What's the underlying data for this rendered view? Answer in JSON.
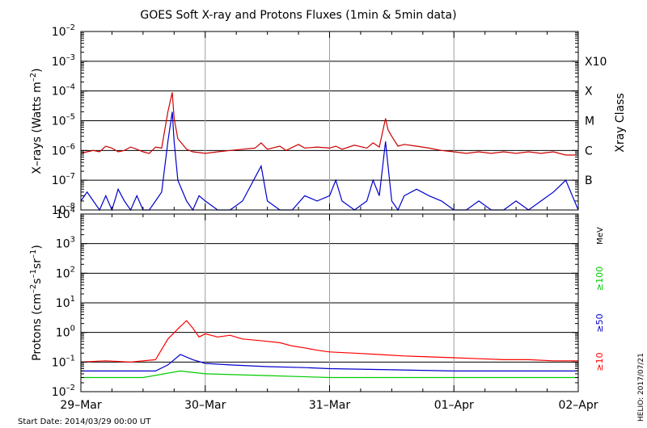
{
  "chart_data": [
    {
      "type": "line",
      "title": "GOES Soft X-ray and Protons Fluxes   (1min & 5min data)",
      "ylabel_base": "X–rays (Watts m",
      "ylabel_exp": "–2",
      "ylabel_end": ")",
      "yscale": "log",
      "ylim": [
        1e-08,
        0.01
      ],
      "yticks": [
        {
          "value": 1e-08,
          "base": "10",
          "exp": "–8"
        },
        {
          "value": 1e-07,
          "base": "10",
          "exp": "–7"
        },
        {
          "value": 1e-06,
          "base": "10",
          "exp": "–6"
        },
        {
          "value": 1e-05,
          "base": "10",
          "exp": "–5"
        },
        {
          "value": 0.0001,
          "base": "10",
          "exp": "–4"
        },
        {
          "value": 0.001,
          "base": "10",
          "exp": "–3"
        },
        {
          "value": 0.01,
          "base": "10",
          "exp": "–2"
        }
      ],
      "right_axis_label": "Xray Class",
      "classes": [
        {
          "label": "B",
          "value": 1e-07
        },
        {
          "label": "C",
          "value": 1e-06
        },
        {
          "label": "M",
          "value": 1e-05
        },
        {
          "label": "X",
          "value": 0.0001
        },
        {
          "label": "X10",
          "value": 0.001
        }
      ],
      "x_day_start": "2014-03-29",
      "x_days": 4,
      "series": [
        {
          "color": "#cc0000",
          "points": [
            [
              0,
              8e-07
            ],
            [
              0.05,
              9e-07
            ],
            [
              0.1,
              1e-06
            ],
            [
              0.15,
              9e-07
            ],
            [
              0.2,
              1.4e-06
            ],
            [
              0.25,
              1.2e-06
            ],
            [
              0.3,
              9e-07
            ],
            [
              0.35,
              1e-06
            ],
            [
              0.4,
              1.3e-06
            ],
            [
              0.45,
              1.1e-06
            ],
            [
              0.5,
              9e-07
            ],
            [
              0.55,
              8e-07
            ],
            [
              0.6,
              1.3e-06
            ],
            [
              0.65,
              1.2e-06
            ],
            [
              0.7,
              2e-05
            ],
            [
              0.735,
              9e-05
            ],
            [
              0.75,
              1.2e-05
            ],
            [
              0.78,
              2.5e-06
            ],
            [
              0.85,
              1.1e-06
            ],
            [
              0.9,
              9e-07
            ],
            [
              1.0,
              8e-07
            ],
            [
              1.1,
              9e-07
            ],
            [
              1.2,
              1e-06
            ],
            [
              1.3,
              1.1e-06
            ],
            [
              1.4,
              1.2e-06
            ],
            [
              1.45,
              1.8e-06
            ],
            [
              1.5,
              1.1e-06
            ],
            [
              1.6,
              1.4e-06
            ],
            [
              1.65,
              1e-06
            ],
            [
              1.75,
              1.6e-06
            ],
            [
              1.8,
              1.2e-06
            ],
            [
              1.9,
              1.3e-06
            ],
            [
              2.0,
              1.2e-06
            ],
            [
              2.05,
              1.4e-06
            ],
            [
              2.1,
              1.1e-06
            ],
            [
              2.2,
              1.5e-06
            ],
            [
              2.3,
              1.2e-06
            ],
            [
              2.35,
              1.8e-06
            ],
            [
              2.4,
              1.3e-06
            ],
            [
              2.45,
              1.2e-05
            ],
            [
              2.47,
              5e-06
            ],
            [
              2.5,
              3e-06
            ],
            [
              2.55,
              1.4e-06
            ],
            [
              2.6,
              1.6e-06
            ],
            [
              2.7,
              1.4e-06
            ],
            [
              2.8,
              1.2e-06
            ],
            [
              2.9,
              1e-06
            ],
            [
              3.0,
              9e-07
            ],
            [
              3.1,
              8e-07
            ],
            [
              3.2,
              9e-07
            ],
            [
              3.3,
              8e-07
            ],
            [
              3.4,
              9e-07
            ],
            [
              3.5,
              8e-07
            ],
            [
              3.6,
              9e-07
            ],
            [
              3.7,
              8e-07
            ],
            [
              3.8,
              9e-07
            ],
            [
              3.9,
              7e-07
            ],
            [
              4.0,
              7e-07
            ]
          ]
        },
        {
          "color": "#0000cc",
          "points": [
            [
              0,
              2e-08
            ],
            [
              0.05,
              4e-08
            ],
            [
              0.1,
              2e-08
            ],
            [
              0.15,
              1e-08
            ],
            [
              0.2,
              3e-08
            ],
            [
              0.25,
              1e-08
            ],
            [
              0.3,
              5e-08
            ],
            [
              0.35,
              2e-08
            ],
            [
              0.4,
              1e-08
            ],
            [
              0.45,
              3e-08
            ],
            [
              0.5,
              1e-08
            ],
            [
              0.55,
              1e-08
            ],
            [
              0.6,
              2e-08
            ],
            [
              0.65,
              4e-08
            ],
            [
              0.7,
              2e-06
            ],
            [
              0.735,
              2e-05
            ],
            [
              0.75,
              2e-06
            ],
            [
              0.78,
              1e-07
            ],
            [
              0.85,
              2e-08
            ],
            [
              0.9,
              1e-08
            ],
            [
              0.95,
              3e-08
            ],
            [
              1.0,
              2e-08
            ],
            [
              1.1,
              1e-08
            ],
            [
              1.2,
              1e-08
            ],
            [
              1.3,
              2e-08
            ],
            [
              1.45,
              3e-07
            ],
            [
              1.5,
              2e-08
            ],
            [
              1.6,
              1e-08
            ],
            [
              1.7,
              1e-08
            ],
            [
              1.8,
              3e-08
            ],
            [
              1.9,
              2e-08
            ],
            [
              2.0,
              3e-08
            ],
            [
              2.05,
              1e-07
            ],
            [
              2.1,
              2e-08
            ],
            [
              2.2,
              1e-08
            ],
            [
              2.3,
              2e-08
            ],
            [
              2.35,
              1e-07
            ],
            [
              2.4,
              3e-08
            ],
            [
              2.45,
              2e-06
            ],
            [
              2.47,
              3e-07
            ],
            [
              2.5,
              2e-08
            ],
            [
              2.55,
              1e-08
            ],
            [
              2.6,
              3e-08
            ],
            [
              2.7,
              5e-08
            ],
            [
              2.8,
              3e-08
            ],
            [
              2.9,
              2e-08
            ],
            [
              3.0,
              1e-08
            ],
            [
              3.1,
              1e-08
            ],
            [
              3.2,
              2e-08
            ],
            [
              3.3,
              1e-08
            ],
            [
              3.4,
              1e-08
            ],
            [
              3.5,
              2e-08
            ],
            [
              3.6,
              1e-08
            ],
            [
              3.7,
              2e-08
            ],
            [
              3.8,
              4e-08
            ],
            [
              3.9,
              1e-07
            ],
            [
              4.0,
              1e-08
            ]
          ]
        }
      ]
    },
    {
      "type": "line",
      "ylabel_base": "Protons (cm",
      "ylabel_exp1": "–2",
      "ylabel_mid1": "s",
      "ylabel_exp2": "–1",
      "ylabel_mid2": "sr",
      "ylabel_exp3": "–1",
      "ylabel_end": ")",
      "yscale": "log",
      "ylim": [
        0.01,
        10000
      ],
      "yticks": [
        {
          "value": 0.01,
          "base": "10",
          "exp": "–2"
        },
        {
          "value": 0.1,
          "base": "10",
          "exp": "–1"
        },
        {
          "value": 1,
          "base": "10",
          "exp": "0"
        },
        {
          "value": 10,
          "base": "10",
          "exp": "1"
        },
        {
          "value": 100,
          "base": "10",
          "exp": "2"
        },
        {
          "value": 1000,
          "base": "10",
          "exp": "3"
        },
        {
          "value": 10000,
          "base": "10",
          "exp": "4"
        }
      ],
      "threshold": 10,
      "unit_label": "MeV",
      "x_day_start": "2014-03-29",
      "x_days": 4,
      "legend": [
        {
          "label": "≥100",
          "color": "#00cc00"
        },
        {
          "label": "≥50",
          "color": "#0000cc"
        },
        {
          "label": "≥10",
          "color": "#ff0000"
        }
      ],
      "series": [
        {
          "label": "≥10",
          "color": "#ff0000",
          "points": [
            [
              0,
              0.1
            ],
            [
              0.2,
              0.11
            ],
            [
              0.4,
              0.1
            ],
            [
              0.6,
              0.12
            ],
            [
              0.7,
              0.6
            ],
            [
              0.8,
              1.6
            ],
            [
              0.85,
              2.5
            ],
            [
              0.9,
              1.4
            ],
            [
              0.95,
              0.7
            ],
            [
              1.0,
              0.9
            ],
            [
              1.1,
              0.7
            ],
            [
              1.2,
              0.8
            ],
            [
              1.3,
              0.6
            ],
            [
              1.4,
              0.55
            ],
            [
              1.5,
              0.5
            ],
            [
              1.6,
              0.45
            ],
            [
              1.7,
              0.35
            ],
            [
              1.8,
              0.3
            ],
            [
              1.9,
              0.25
            ],
            [
              2.0,
              0.22
            ],
            [
              2.2,
              0.2
            ],
            [
              2.4,
              0.18
            ],
            [
              2.6,
              0.16
            ],
            [
              2.8,
              0.15
            ],
            [
              3.0,
              0.14
            ],
            [
              3.2,
              0.13
            ],
            [
              3.4,
              0.12
            ],
            [
              3.6,
              0.12
            ],
            [
              3.8,
              0.11
            ],
            [
              4.0,
              0.11
            ]
          ]
        },
        {
          "label": "≥50",
          "color": "#0000cc",
          "points": [
            [
              0,
              0.05
            ],
            [
              0.3,
              0.05
            ],
            [
              0.6,
              0.05
            ],
            [
              0.7,
              0.08
            ],
            [
              0.8,
              0.18
            ],
            [
              0.9,
              0.12
            ],
            [
              1.0,
              0.09
            ],
            [
              1.2,
              0.08
            ],
            [
              1.5,
              0.07
            ],
            [
              1.8,
              0.065
            ],
            [
              2.0,
              0.06
            ],
            [
              2.5,
              0.055
            ],
            [
              3.0,
              0.05
            ],
            [
              3.5,
              0.05
            ],
            [
              4.0,
              0.05
            ]
          ]
        },
        {
          "label": "≥100",
          "color": "#00cc00",
          "points": [
            [
              0,
              0.03
            ],
            [
              0.5,
              0.03
            ],
            [
              0.8,
              0.05
            ],
            [
              1.0,
              0.04
            ],
            [
              1.5,
              0.035
            ],
            [
              2.0,
              0.03
            ],
            [
              2.5,
              0.03
            ],
            [
              3.0,
              0.03
            ],
            [
              3.5,
              0.03
            ],
            [
              4.0,
              0.03
            ]
          ]
        }
      ],
      "xticks": [
        "29–Mar",
        "30–Mar",
        "31–Mar",
        "01–Apr",
        "02–Apr"
      ]
    }
  ],
  "footer": {
    "start_date": "Start Date: 2014/03/29 00:00 UT",
    "credit": "HELIO: 2017/07/21"
  }
}
